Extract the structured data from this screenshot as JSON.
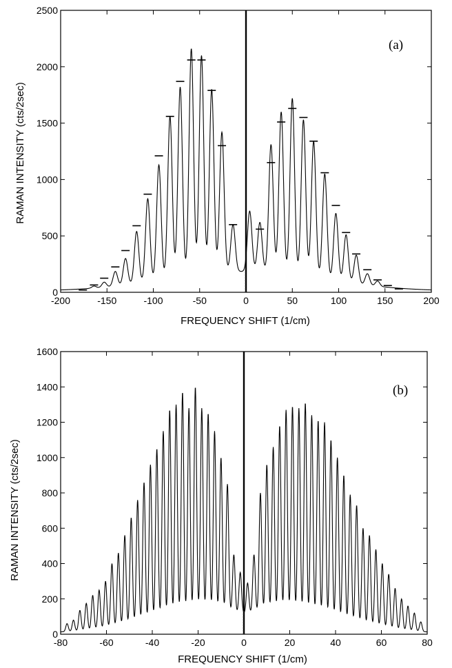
{
  "chart_data": [
    {
      "type": "line",
      "panel_label": "(a)",
      "xlabel": "FREQUENCY SHIFT (1/cm)",
      "ylabel": "RAMAN INTENSITY (cts/2sec)",
      "xlim": [
        -200,
        200
      ],
      "ylim": [
        0,
        2500
      ],
      "xticks": [
        -200,
        -150,
        -100,
        -50,
        0,
        50,
        100,
        150,
        200
      ],
      "yticks": [
        0,
        500,
        1000,
        1500,
        2000,
        2500
      ],
      "central_line": {
        "x": 0,
        "y": 2500
      },
      "series": [
        {
          "style": "measured",
          "peaks": [
            {
              "x": -187,
              "y": 10
            },
            {
              "x": -176,
              "y": 18
            },
            {
              "x": -164,
              "y": 55
            },
            {
              "x": -153,
              "y": 90
            },
            {
              "x": -141,
              "y": 185
            },
            {
              "x": -130,
              "y": 300
            },
            {
              "x": -118,
              "y": 540
            },
            {
              "x": -106,
              "y": 830
            },
            {
              "x": -94,
              "y": 1130
            },
            {
              "x": -82,
              "y": 1560
            },
            {
              "x": -71,
              "y": 1820
            },
            {
              "x": -59,
              "y": 2160
            },
            {
              "x": -48,
              "y": 2100
            },
            {
              "x": -37,
              "y": 1800
            },
            {
              "x": -26,
              "y": 1420
            },
            {
              "x": -14,
              "y": 600
            },
            {
              "x": 4,
              "y": 720
            },
            {
              "x": 15,
              "y": 620
            },
            {
              "x": 27,
              "y": 1310
            },
            {
              "x": 38,
              "y": 1600
            },
            {
              "x": 50,
              "y": 1720
            },
            {
              "x": 62,
              "y": 1530
            },
            {
              "x": 73,
              "y": 1340
            },
            {
              "x": 85,
              "y": 1050
            },
            {
              "x": 97,
              "y": 700
            },
            {
              "x": 108,
              "y": 510
            },
            {
              "x": 119,
              "y": 330
            },
            {
              "x": 131,
              "y": 165
            },
            {
              "x": 142,
              "y": 100
            },
            {
              "x": 153,
              "y": 45
            },
            {
              "x": 165,
              "y": 25
            },
            {
              "x": 177,
              "y": 12
            }
          ]
        },
        {
          "style": "calculated-dash",
          "points": [
            {
              "x": -176,
              "y": 20
            },
            {
              "x": -164,
              "y": 65
            },
            {
              "x": -153,
              "y": 125
            },
            {
              "x": -141,
              "y": 225
            },
            {
              "x": -130,
              "y": 370
            },
            {
              "x": -118,
              "y": 590
            },
            {
              "x": -106,
              "y": 870
            },
            {
              "x": -94,
              "y": 1210
            },
            {
              "x": -82,
              "y": 1560
            },
            {
              "x": -71,
              "y": 1870
            },
            {
              "x": -59,
              "y": 2060
            },
            {
              "x": -48,
              "y": 2060
            },
            {
              "x": -37,
              "y": 1790
            },
            {
              "x": -26,
              "y": 1300
            },
            {
              "x": -14,
              "y": 600
            },
            {
              "x": 15,
              "y": 560
            },
            {
              "x": 27,
              "y": 1150
            },
            {
              "x": 38,
              "y": 1510
            },
            {
              "x": 50,
              "y": 1630
            },
            {
              "x": 62,
              "y": 1550
            },
            {
              "x": 73,
              "y": 1340
            },
            {
              "x": 85,
              "y": 1060
            },
            {
              "x": 97,
              "y": 770
            },
            {
              "x": 108,
              "y": 530
            },
            {
              "x": 119,
              "y": 340
            },
            {
              "x": 131,
              "y": 200
            },
            {
              "x": 142,
              "y": 110
            },
            {
              "x": 153,
              "y": 60
            },
            {
              "x": 165,
              "y": 30
            }
          ]
        }
      ]
    },
    {
      "type": "line",
      "panel_label": "(b)",
      "xlabel": "FREQUENCY SHIFT (1/cm)",
      "ylabel": "RAMAN INTENSITY (cts/2sec)",
      "xlim": [
        -80,
        80
      ],
      "ylim": [
        0,
        1600
      ],
      "xticks": [
        -80,
        -60,
        -40,
        -20,
        0,
        20,
        40,
        60,
        80
      ],
      "yticks": [
        0,
        200,
        400,
        600,
        800,
        1000,
        1200,
        1400,
        1600
      ],
      "central_line": {
        "x": 0,
        "y": 1600
      },
      "series": [
        {
          "style": "measured",
          "peaks": [
            {
              "x": -77.2,
              "y": 60
            },
            {
              "x": -74.4,
              "y": 80
            },
            {
              "x": -71.6,
              "y": 135
            },
            {
              "x": -68.8,
              "y": 175
            },
            {
              "x": -66.0,
              "y": 220
            },
            {
              "x": -63.2,
              "y": 250
            },
            {
              "x": -60.4,
              "y": 300
            },
            {
              "x": -57.6,
              "y": 400
            },
            {
              "x": -54.8,
              "y": 460
            },
            {
              "x": -52.0,
              "y": 560
            },
            {
              "x": -49.2,
              "y": 660
            },
            {
              "x": -46.4,
              "y": 760
            },
            {
              "x": -43.6,
              "y": 860
            },
            {
              "x": -40.8,
              "y": 960
            },
            {
              "x": -38.0,
              "y": 1050
            },
            {
              "x": -35.2,
              "y": 1150
            },
            {
              "x": -32.4,
              "y": 1270
            },
            {
              "x": -29.6,
              "y": 1300
            },
            {
              "x": -26.8,
              "y": 1370
            },
            {
              "x": -24.0,
              "y": 1280
            },
            {
              "x": -21.2,
              "y": 1400
            },
            {
              "x": -18.4,
              "y": 1280
            },
            {
              "x": -15.6,
              "y": 1250
            },
            {
              "x": -12.8,
              "y": 1150
            },
            {
              "x": -10.0,
              "y": 1000
            },
            {
              "x": -7.2,
              "y": 850
            },
            {
              "x": -4.4,
              "y": 450
            },
            {
              "x": -1.6,
              "y": 350
            },
            {
              "x": 1.6,
              "y": 290
            },
            {
              "x": 4.4,
              "y": 450
            },
            {
              "x": 7.2,
              "y": 800
            },
            {
              "x": 10.0,
              "y": 960
            },
            {
              "x": 12.8,
              "y": 1060
            },
            {
              "x": 15.6,
              "y": 1180
            },
            {
              "x": 18.4,
              "y": 1270
            },
            {
              "x": 21.2,
              "y": 1290
            },
            {
              "x": 24.0,
              "y": 1280
            },
            {
              "x": 26.8,
              "y": 1310
            },
            {
              "x": 29.6,
              "y": 1240
            },
            {
              "x": 32.4,
              "y": 1210
            },
            {
              "x": 35.2,
              "y": 1200
            },
            {
              "x": 38.0,
              "y": 1100
            },
            {
              "x": 40.8,
              "y": 1000
            },
            {
              "x": 43.6,
              "y": 900
            },
            {
              "x": 46.4,
              "y": 790
            },
            {
              "x": 49.2,
              "y": 730
            },
            {
              "x": 52.0,
              "y": 600
            },
            {
              "x": 54.8,
              "y": 560
            },
            {
              "x": 57.6,
              "y": 480
            },
            {
              "x": 60.4,
              "y": 400
            },
            {
              "x": 63.2,
              "y": 340
            },
            {
              "x": 66.0,
              "y": 260
            },
            {
              "x": 68.8,
              "y": 200
            },
            {
              "x": 71.6,
              "y": 160
            },
            {
              "x": 74.4,
              "y": 120
            },
            {
              "x": 77.2,
              "y": 70
            }
          ]
        }
      ]
    }
  ]
}
